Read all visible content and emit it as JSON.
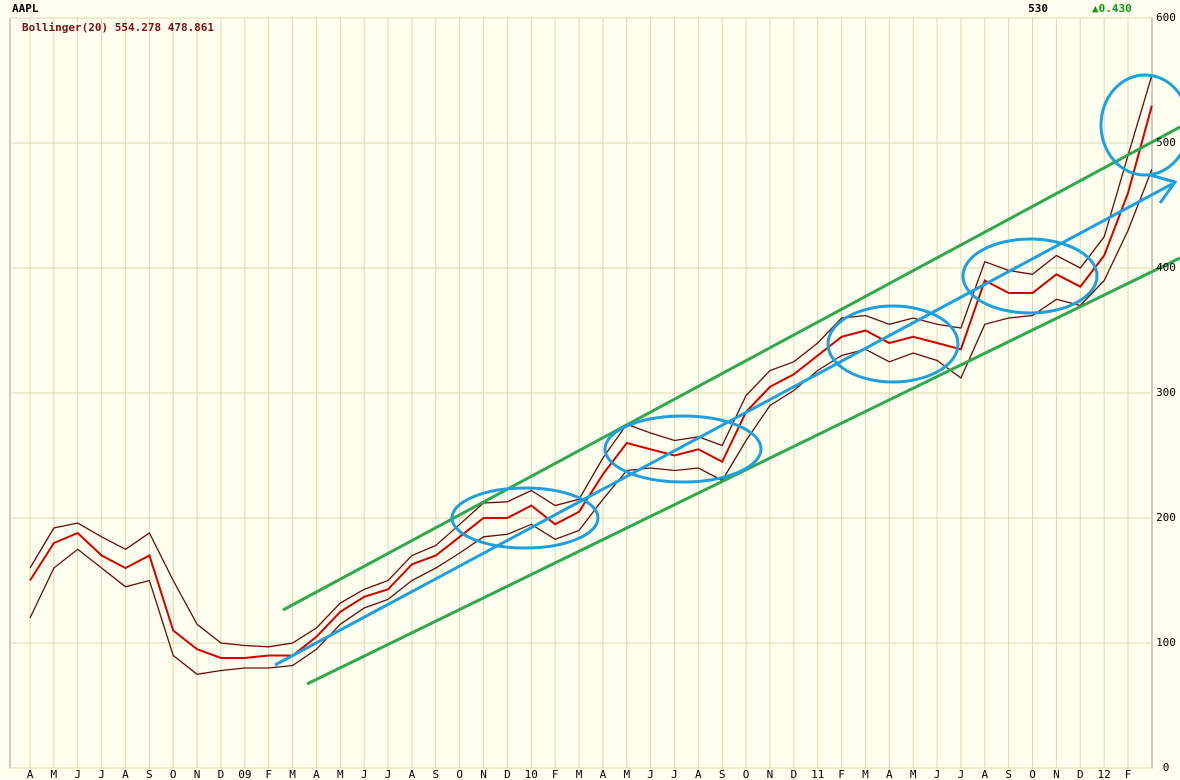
{
  "chart_data": {
    "type": "line",
    "title": "AAPL",
    "last_price": "530",
    "change": "▲0.430",
    "indicator": "Bollinger(20) 554.278 478.861",
    "categories": [
      "A",
      "M",
      "J",
      "J",
      "A",
      "S",
      "O",
      "N",
      "D",
      "09",
      "F",
      "M",
      "A",
      "M",
      "J",
      "J",
      "A",
      "S",
      "O",
      "N",
      "D",
      "10",
      "F",
      "M",
      "A",
      "M",
      "J",
      "J",
      "A",
      "S",
      "O",
      "N",
      "D",
      "11",
      "F",
      "M",
      "A",
      "M",
      "J",
      "J",
      "A",
      "S",
      "O",
      "N",
      "D",
      "12",
      "F",
      null
    ],
    "series": [
      {
        "name": "AAPL",
        "color": "#d40000",
        "values": [
          150,
          180,
          188,
          170,
          160,
          170,
          110,
          95,
          88,
          88,
          90,
          90,
          105,
          125,
          137,
          143,
          163,
          170,
          185,
          200,
          200,
          210,
          195,
          205,
          235,
          260,
          255,
          250,
          255,
          245,
          285,
          305,
          315,
          330,
          345,
          350,
          340,
          345,
          340,
          335,
          390,
          380,
          380,
          395,
          385,
          410,
          460,
          530
        ]
      },
      {
        "name": "Bollinger Upper",
        "color": "#6b0a0a",
        "values": [
          160,
          192,
          196,
          185,
          175,
          188,
          150,
          115,
          100,
          98,
          97,
          100,
          112,
          132,
          143,
          150,
          170,
          178,
          195,
          212,
          213,
          222,
          210,
          215,
          248,
          275,
          268,
          262,
          265,
          258,
          298,
          318,
          325,
          340,
          360,
          362,
          355,
          360,
          355,
          352,
          405,
          398,
          395,
          410,
          400,
          425,
          490,
          554.278
        ]
      },
      {
        "name": "Bollinger Lower",
        "color": "#6b0a0a",
        "values": [
          120,
          160,
          175,
          160,
          145,
          150,
          90,
          75,
          78,
          80,
          80,
          82,
          95,
          115,
          128,
          135,
          150,
          160,
          172,
          185,
          187,
          195,
          183,
          190,
          215,
          238,
          240,
          238,
          240,
          230,
          262,
          290,
          302,
          318,
          330,
          335,
          325,
          332,
          326,
          312,
          355,
          360,
          362,
          375,
          370,
          390,
          430,
          478.861
        ]
      }
    ],
    "ylim": [
      0,
      600
    ],
    "yticks": [
      0,
      100,
      200,
      300,
      400,
      500,
      600
    ],
    "grid": true
  }
}
